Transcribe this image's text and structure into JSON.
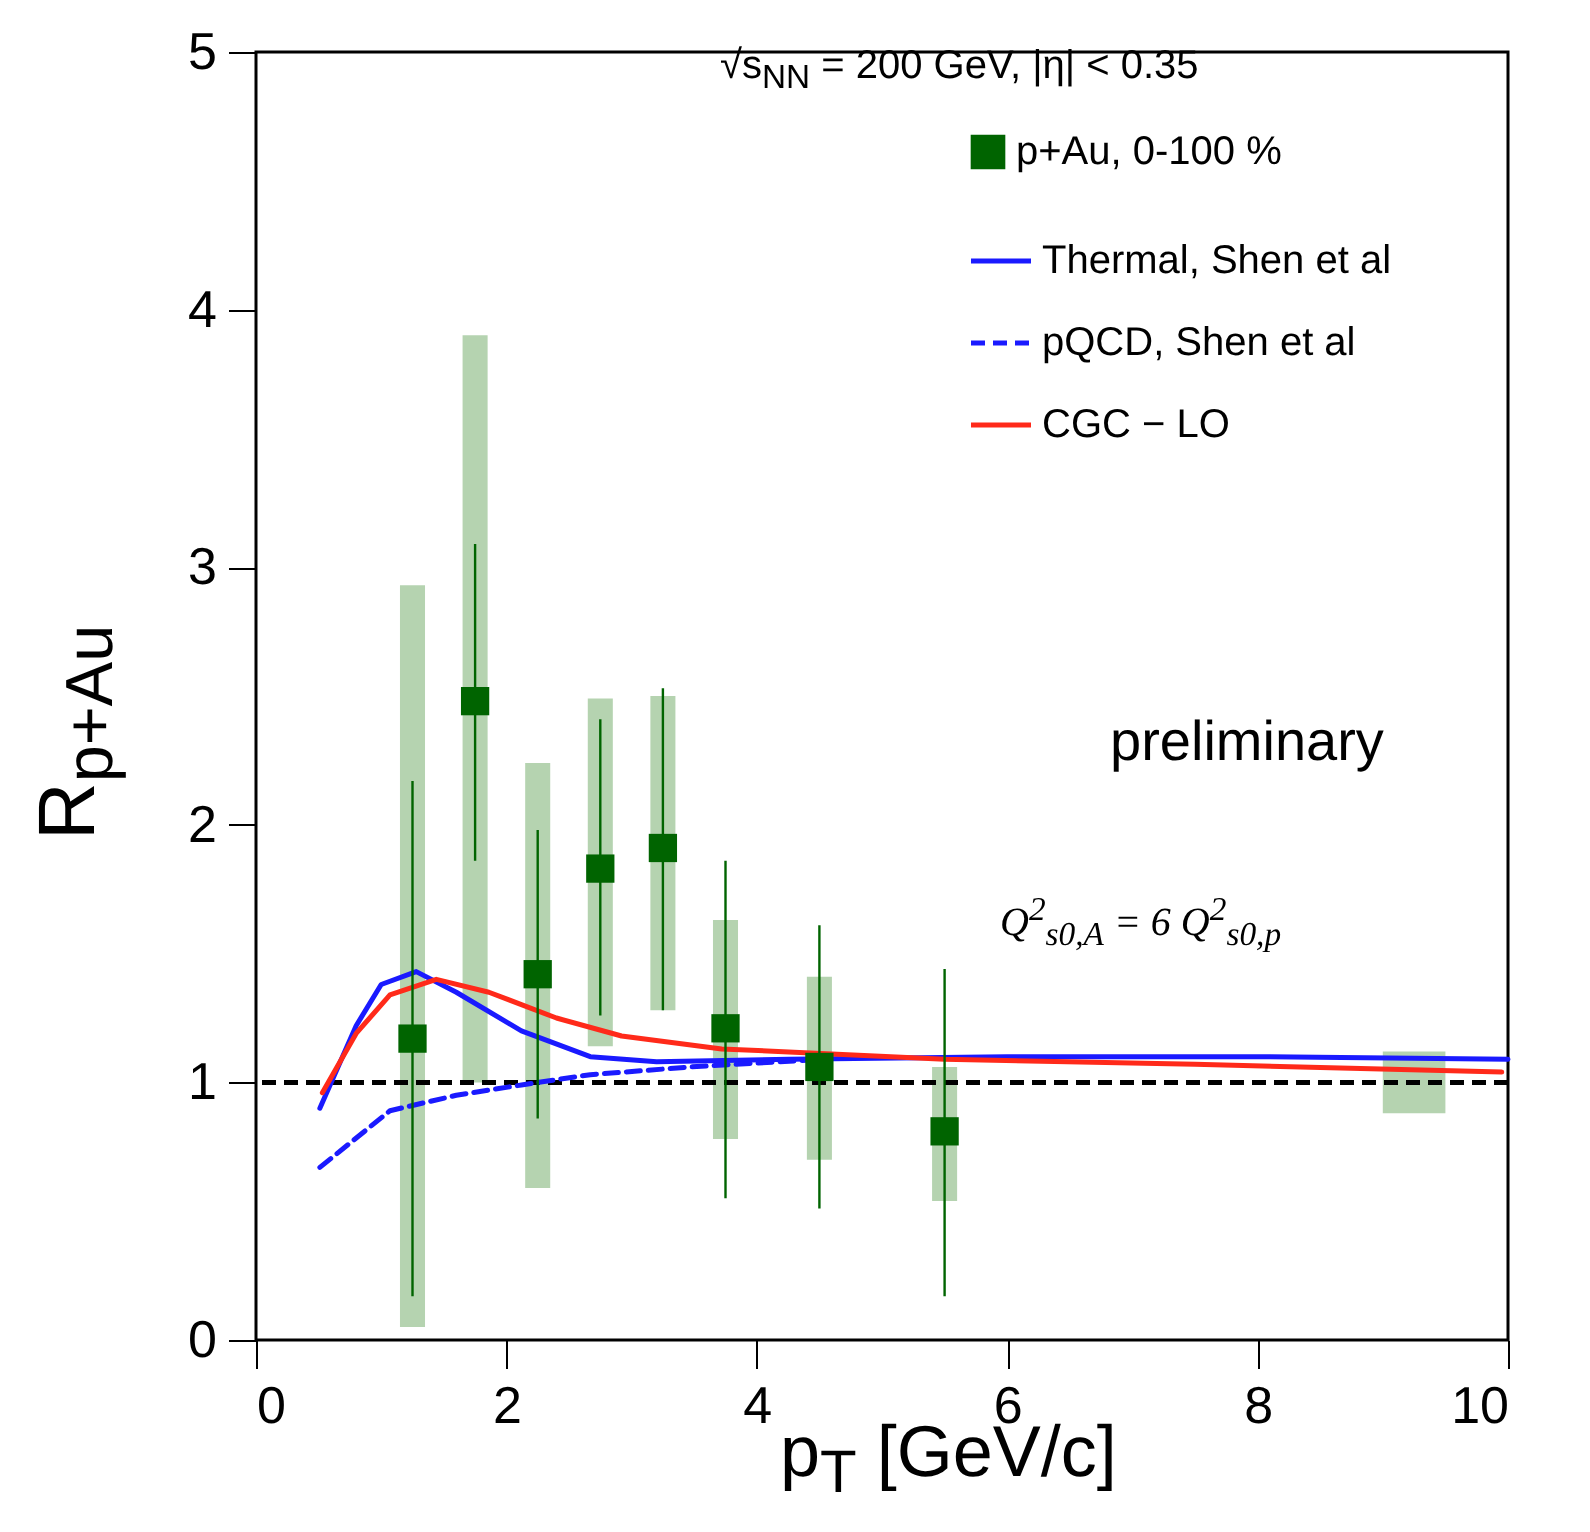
{
  "chart_data": {
    "type": "scatter",
    "xlabel": "p$_{T}$ [GeV/c]",
    "ylabel": "R$_{p+Au}$",
    "xlim": [
      0,
      10
    ],
    "ylim": [
      0,
      5
    ],
    "xticks": [
      0,
      2,
      4,
      6,
      8,
      10
    ],
    "yticks": [
      0,
      1,
      2,
      3,
      4,
      5
    ],
    "legend": "top right",
    "annotations": [
      "√s$_{NN}$ = 200 GeV, |η| < 0.35",
      "preliminary",
      "Q$^{2}$$_{s0,A}$ = 6 Q$^{2}$$_{s0,p}$"
    ],
    "ref_lines": [
      {
        "axis": "y",
        "value": 1,
        "color": "#000000",
        "line_style": "dashed"
      }
    ],
    "series": [
      {
        "type": "bar",
        "color": "#b5d3b0",
        "x": [
          1.25,
          1.75,
          2.25,
          2.75,
          3.25,
          3.75,
          4.5,
          5.5
        ],
        "base": [
          0.05,
          1.0,
          0.59,
          1.14,
          1.28,
          0.78,
          0.7,
          0.54
        ],
        "values": [
          2.88,
          2.9,
          1.65,
          1.35,
          1.22,
          0.85,
          0.71,
          0.52
        ]
      },
      {
        "type": "bar",
        "color": "#b5d3b0",
        "x": [
          9.25
        ],
        "base": [
          0.88
        ],
        "values": [
          0.24
        ]
      },
      {
        "name": "p+Au, 0-100 %",
        "marker": "square",
        "color": "#006400",
        "x": [
          1.25,
          1.75,
          2.25,
          2.75,
          3.25,
          3.75,
          4.5,
          5.5
        ],
        "values": [
          1.17,
          2.48,
          1.42,
          1.83,
          1.91,
          1.21,
          1.06,
          0.81
        ],
        "errors": [
          [
            0.17,
            2.17
          ],
          [
            1.86,
            3.09
          ],
          [
            0.86,
            1.98
          ],
          [
            1.26,
            2.41
          ],
          [
            1.28,
            2.53
          ],
          [
            0.55,
            1.86
          ],
          [
            0.51,
            1.61
          ],
          [
            0.17,
            1.44
          ]
        ]
      },
      {
        "name": "Thermal, Shen et al",
        "type": "line",
        "line_style": "solid",
        "color": "#1a1aff",
        "x": [
          0.51,
          0.8,
          1.0,
          1.28,
          1.6,
          2.12,
          2.67,
          3.2,
          4.26,
          6,
          8,
          10
        ],
        "values": [
          0.9,
          1.22,
          1.38,
          1.43,
          1.35,
          1.2,
          1.1,
          1.08,
          1.09,
          1.1,
          1.1,
          1.09
        ]
      },
      {
        "name": "pQCD, Shen et al",
        "type": "line",
        "line_style": "dashed",
        "color": "#1a1aff",
        "x": [
          0.51,
          1.07,
          1.6,
          2.12,
          2.67,
          3.47,
          4.53
        ],
        "values": [
          0.67,
          0.89,
          0.95,
          0.99,
          1.03,
          1.06,
          1.09
        ]
      },
      {
        "name": "CGC − LO",
        "type": "line",
        "line_style": "solid",
        "color": "#ff2a1a",
        "x": [
          0.53,
          0.8,
          1.07,
          1.44,
          1.86,
          2.4,
          2.92,
          3.72,
          5.5,
          7.5,
          9.95
        ],
        "values": [
          0.96,
          1.19,
          1.34,
          1.4,
          1.35,
          1.25,
          1.18,
          1.13,
          1.09,
          1.07,
          1.04
        ]
      }
    ]
  }
}
